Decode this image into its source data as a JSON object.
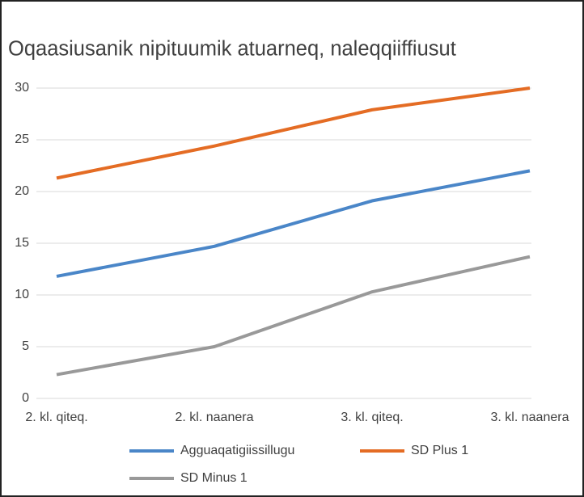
{
  "chart_data": {
    "type": "line",
    "title": "Oqaasiusanik nipituumik atuarneq, naleqqiiffiusut",
    "categories": [
      "2. kl. qiteq.",
      "2. kl. naanera",
      "3. kl. qiteq.",
      "3. kl. naanera"
    ],
    "series": [
      {
        "name": "Agguaqatigiissillugu",
        "color": "#4a86c8",
        "values": [
          11.8,
          14.7,
          19.1,
          22.0
        ]
      },
      {
        "name": "SD Plus 1",
        "color": "#e46c24",
        "values": [
          21.3,
          24.4,
          27.9,
          30.0
        ]
      },
      {
        "name": "SD Minus 1",
        "color": "#999999",
        "values": [
          2.3,
          5.0,
          10.3,
          13.7
        ]
      }
    ],
    "ylim": [
      0,
      30
    ],
    "yticks": [
      0,
      5,
      10,
      15,
      20,
      25,
      30
    ],
    "grid": true,
    "legend": "bottom"
  }
}
